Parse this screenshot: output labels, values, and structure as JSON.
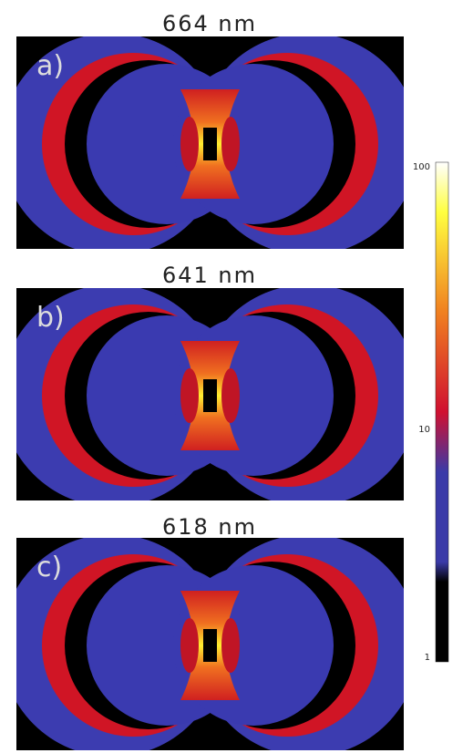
{
  "panels": [
    {
      "title": "664 nm",
      "label": "a)"
    },
    {
      "title": "641 nm",
      "label": "b)"
    },
    {
      "title": "618 nm",
      "label": "c)"
    }
  ],
  "colorbar": {
    "ticks": [
      100,
      10,
      1
    ]
  }
}
